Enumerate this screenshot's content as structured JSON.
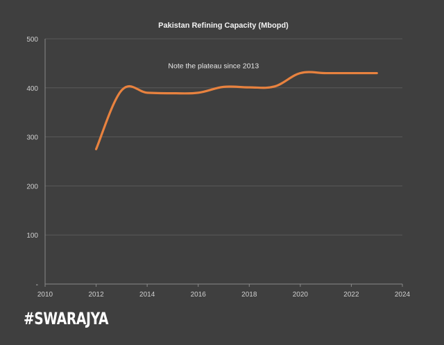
{
  "colors": {
    "series": "#e8823f"
  },
  "chart_data": {
    "type": "line",
    "title": "Pakistan Refining Capacity (Mbopd)",
    "xlabel": "",
    "ylabel": "",
    "xlim": [
      2010,
      2024
    ],
    "ylim": [
      0,
      500
    ],
    "x_ticks": [
      2010,
      2012,
      2014,
      2016,
      2018,
      2020,
      2022,
      2024
    ],
    "y_ticks": [
      0,
      100,
      200,
      300,
      400,
      500
    ],
    "y_tick_labels": [
      "-",
      "100",
      "200",
      "300",
      "400",
      "500"
    ],
    "grid": true,
    "series": [
      {
        "x": [
          2012,
          2013,
          2014,
          2015,
          2016,
          2017,
          2018,
          2019,
          2020,
          2021,
          2022,
          2023
        ],
        "values": [
          275,
          395,
          390,
          389,
          390,
          402,
          401,
          403,
          430,
          430,
          430,
          430
        ]
      }
    ],
    "annotations": [
      {
        "text": "Note the plateau since 2013",
        "x": 2016.6,
        "y": 440
      }
    ]
  },
  "brand": {
    "logo_text": "#SWARAJYA"
  }
}
